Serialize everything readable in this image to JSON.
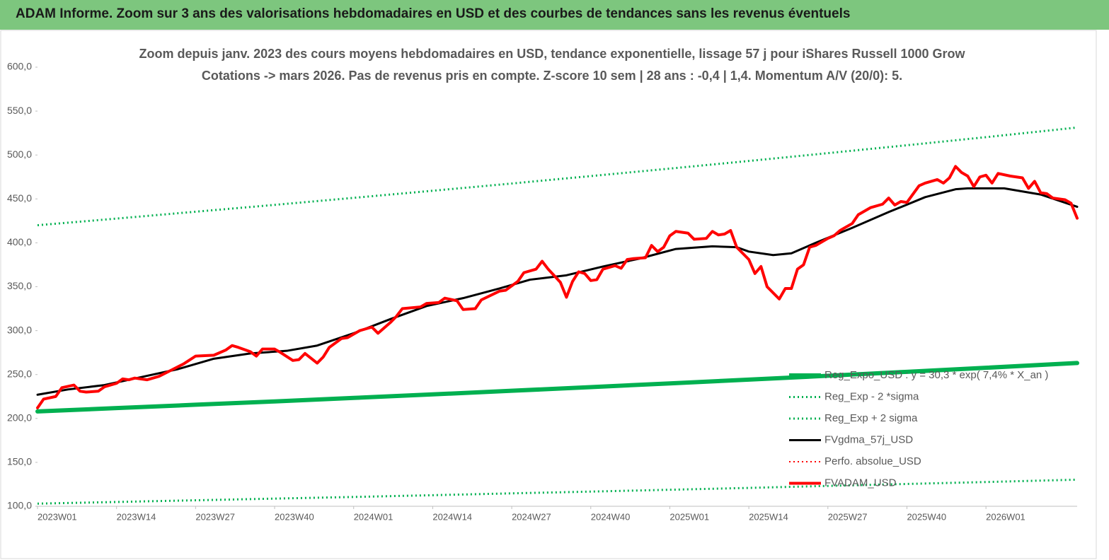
{
  "header": {
    "title": "ADAM Informe. Zoom sur 3 ans des valorisations hebdomadaires en USD et des courbes de tendances sans les revenus éventuels"
  },
  "chart_data": {
    "type": "line",
    "title": "Zoom depuis janv. 2023 des cours moyens hebdomadaires en USD, tendance exponentielle, lissage 57 j pour iShares Russell 1000 Grow",
    "subtitle": "Cotations -> mars 2026. Pas de revenus pris en compte. Z-score 10 sem | 28 ans : -0,4 | 1,4. Momentum A/V (20/0): 5.",
    "xlim": [
      0,
      171
    ],
    "xticks": [
      {
        "value": 0,
        "label": "2023W01"
      },
      {
        "value": 13,
        "label": "2023W14"
      },
      {
        "value": 26,
        "label": "2023W27"
      },
      {
        "value": 39,
        "label": "2023W40"
      },
      {
        "value": 52,
        "label": "2024W01"
      },
      {
        "value": 65,
        "label": "2024W14"
      },
      {
        "value": 78,
        "label": "2024W27"
      },
      {
        "value": 91,
        "label": "2024W40"
      },
      {
        "value": 104,
        "label": "2025W01"
      },
      {
        "value": 117,
        "label": "2025W14"
      },
      {
        "value": 130,
        "label": "2025W27"
      },
      {
        "value": 143,
        "label": "2025W40"
      },
      {
        "value": 156,
        "label": "2026W01"
      }
    ],
    "ylim": [
      100,
      600
    ],
    "yticks": [
      {
        "value": 100,
        "label": "100,0"
      },
      {
        "value": 150,
        "label": "150,0"
      },
      {
        "value": 200,
        "label": "200,0"
      },
      {
        "value": 250,
        "label": "250,0"
      },
      {
        "value": 300,
        "label": "300,0"
      },
      {
        "value": 350,
        "label": "350,0"
      },
      {
        "value": 400,
        "label": "400,0"
      },
      {
        "value": 450,
        "label": "450,0"
      },
      {
        "value": 500,
        "label": "500,0"
      },
      {
        "value": 550,
        "label": "550,0"
      },
      {
        "value": 600,
        "label": "600,0"
      }
    ],
    "grid": false,
    "legend": "bottom-right",
    "series": [
      {
        "name": "Reg_Expo_USD : y = 30,3 * exp( 7,4% * X_an )",
        "color": "#00b050",
        "line_style": "solid",
        "line_width": 6,
        "x": [
          0,
          13,
          26,
          39,
          52,
          65,
          78,
          91,
          104,
          117,
          130,
          143,
          156,
          171
        ],
        "values": [
          208,
          211.8,
          215.6,
          219.4,
          223.4,
          227.4,
          231.5,
          235.7,
          239.9,
          244.2,
          248.6,
          253.1,
          257.7,
          263.1
        ]
      },
      {
        "name": "Reg_Exp - 2 *sigma",
        "color": "#00b050",
        "line_style": "dotted",
        "line_width": 3,
        "x": [
          0,
          13,
          26,
          39,
          52,
          65,
          78,
          91,
          104,
          117,
          130,
          143,
          156,
          171
        ],
        "values": [
          103,
          104.9,
          106.8,
          108.7,
          110.6,
          112.6,
          114.7,
          116.7,
          118.8,
          120.9,
          123.2,
          125.4,
          127.6,
          130.3
        ]
      },
      {
        "name": "Reg_Exp + 2 sigma",
        "color": "#00b050",
        "line_style": "dotted",
        "line_width": 3,
        "x": [
          0,
          13,
          26,
          39,
          52,
          65,
          78,
          91,
          104,
          117,
          130,
          143,
          156,
          171
        ],
        "values": [
          420,
          427.6,
          435.4,
          443.2,
          451.2,
          459.3,
          467.5,
          476,
          484.5,
          493.2,
          502.1,
          511.1,
          520.3,
          531.3
        ]
      },
      {
        "name": "FVgdma_57j_USD",
        "color": "#000000",
        "line_style": "solid",
        "line_width": 3,
        "x": [
          0,
          5,
          11,
          17,
          23,
          29,
          35,
          41,
          46,
          52,
          58,
          64,
          70,
          76,
          81,
          87,
          93,
          99,
          105,
          111,
          115,
          117,
          121,
          124,
          128,
          134,
          140,
          146,
          151,
          153,
          159,
          165,
          171
        ],
        "values": [
          227,
          233,
          238,
          247,
          256,
          268,
          274,
          277,
          283,
          297,
          313,
          328,
          337,
          348,
          358,
          363,
          373,
          382,
          393,
          396,
          395,
          390,
          386,
          388,
          400,
          417,
          435,
          452,
          461,
          462,
          462,
          455,
          441
        ]
      },
      {
        "name": "Perfo. absolue_USD",
        "color": "#ff0000",
        "line_style": "dotted",
        "line_width": 2,
        "x": [],
        "values": []
      },
      {
        "name": "FVADAM_USD",
        "color": "#ff0000",
        "line_style": "solid",
        "line_width": 4,
        "x": [
          0,
          1,
          3,
          4,
          6,
          7,
          8,
          10,
          11,
          13,
          14,
          15,
          16,
          18,
          20,
          22,
          24,
          26,
          29,
          31,
          32,
          33,
          35,
          36,
          37,
          39,
          40,
          42,
          43,
          44,
          46,
          47,
          48,
          50,
          51,
          53,
          55,
          56,
          58,
          59,
          60,
          63,
          64,
          66,
          67,
          69,
          70,
          72,
          73,
          76,
          77,
          79,
          80,
          82,
          83,
          84,
          86,
          87,
          88,
          89,
          90,
          91,
          92,
          93,
          95,
          96,
          97,
          98,
          100,
          101,
          102,
          103,
          104,
          105,
          107,
          108,
          110,
          111,
          112,
          113,
          114,
          115,
          117,
          118,
          119,
          120,
          122,
          123,
          124,
          125,
          126,
          127,
          128,
          130,
          131,
          132,
          134,
          135,
          137,
          139,
          140,
          141,
          142,
          143,
          145,
          146,
          148,
          149,
          150,
          151,
          152,
          153,
          154,
          155,
          156,
          157,
          158,
          160,
          162,
          163,
          164,
          165,
          166,
          167,
          169,
          170,
          171
        ],
        "values": [
          212,
          222,
          225,
          235,
          238,
          231,
          230,
          231,
          236,
          240,
          245,
          244,
          246,
          244,
          248,
          255,
          262,
          271,
          272,
          278,
          283,
          281,
          276,
          271,
          279,
          279,
          275,
          266,
          267,
          274,
          263,
          270,
          281,
          291,
          292,
          300,
          304,
          297,
          309,
          316,
          325,
          327,
          331,
          332,
          337,
          334,
          324,
          325,
          335,
          345,
          346,
          356,
          366,
          370,
          379,
          370,
          355,
          338,
          356,
          367,
          365,
          357,
          358,
          370,
          374,
          371,
          381,
          382,
          383,
          397,
          390,
          395,
          408,
          413,
          411,
          404,
          405,
          413,
          409,
          410,
          414,
          395,
          381,
          365,
          373,
          350,
          336,
          348,
          348,
          370,
          375,
          395,
          397,
          405,
          408,
          414,
          422,
          432,
          440,
          444,
          451,
          443,
          447,
          446,
          465,
          468,
          472,
          468,
          474,
          487,
          480,
          476,
          464,
          475,
          477,
          468,
          479,
          476,
          474,
          462,
          470,
          457,
          456,
          451,
          449,
          445,
          428
        ]
      }
    ]
  }
}
